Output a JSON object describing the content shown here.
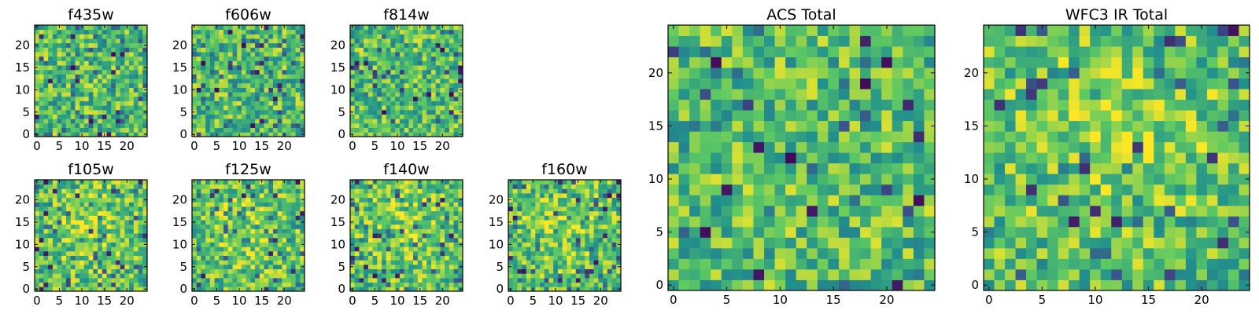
{
  "chart_data": [
    {
      "type": "heatmap",
      "title": "f435w",
      "x_ticks": [
        "0",
        "5",
        "10",
        "15",
        "20"
      ],
      "y_ticks": [
        "0",
        "5",
        "10",
        "15",
        "20"
      ],
      "grid_size": 25,
      "xlim": [
        -0.5,
        24.5
      ],
      "ylim": [
        -0.5,
        24.5
      ],
      "colormap": "viridis",
      "values_note": "per-pixel values not legible"
    },
    {
      "type": "heatmap",
      "title": "f606w",
      "x_ticks": [
        "0",
        "5",
        "10",
        "15",
        "20"
      ],
      "y_ticks": [
        "0",
        "5",
        "10",
        "15",
        "20"
      ],
      "grid_size": 25,
      "xlim": [
        -0.5,
        24.5
      ],
      "ylim": [
        -0.5,
        24.5
      ],
      "colormap": "viridis",
      "values_note": "per-pixel values not legible"
    },
    {
      "type": "heatmap",
      "title": "f814w",
      "x_ticks": [
        "0",
        "5",
        "10",
        "15",
        "20"
      ],
      "y_ticks": [
        "0",
        "5",
        "10",
        "15",
        "20"
      ],
      "grid_size": 25,
      "xlim": [
        -0.5,
        24.5
      ],
      "ylim": [
        -0.5,
        24.5
      ],
      "colormap": "viridis",
      "values_note": "per-pixel values not legible"
    },
    {
      "type": "heatmap",
      "title": "f105w",
      "x_ticks": [
        "0",
        "5",
        "10",
        "15",
        "20"
      ],
      "y_ticks": [
        "0",
        "5",
        "10",
        "15",
        "20"
      ],
      "grid_size": 25,
      "xlim": [
        -0.5,
        24.5
      ],
      "ylim": [
        -0.5,
        24.5
      ],
      "colormap": "viridis",
      "values_note": "per-pixel values not legible"
    },
    {
      "type": "heatmap",
      "title": "f125w",
      "x_ticks": [
        "0",
        "5",
        "10",
        "15",
        "20"
      ],
      "y_ticks": [
        "0",
        "5",
        "10",
        "15",
        "20"
      ],
      "grid_size": 25,
      "xlim": [
        -0.5,
        24.5
      ],
      "ylim": [
        -0.5,
        24.5
      ],
      "colormap": "viridis",
      "values_note": "per-pixel values not legible"
    },
    {
      "type": "heatmap",
      "title": "f140w",
      "x_ticks": [
        "0",
        "5",
        "10",
        "15",
        "20"
      ],
      "y_ticks": [
        "0",
        "5",
        "10",
        "15",
        "20"
      ],
      "grid_size": 25,
      "xlim": [
        -0.5,
        24.5
      ],
      "ylim": [
        -0.5,
        24.5
      ],
      "colormap": "viridis",
      "values_note": "per-pixel values not legible"
    },
    {
      "type": "heatmap",
      "title": "f160w",
      "x_ticks": [
        "0",
        "5",
        "10",
        "15",
        "20"
      ],
      "y_ticks": [
        "0",
        "5",
        "10",
        "15",
        "20"
      ],
      "grid_size": 25,
      "xlim": [
        -0.5,
        24.5
      ],
      "ylim": [
        -0.5,
        24.5
      ],
      "colormap": "viridis",
      "values_note": "per-pixel values not legible"
    },
    {
      "type": "heatmap",
      "title": "ACS Total",
      "x_ticks": [
        "0",
        "5",
        "10",
        "15",
        "20"
      ],
      "y_ticks": [
        "0",
        "5",
        "10",
        "15",
        "20"
      ],
      "grid_size": 25,
      "xlim": [
        -0.5,
        24.5
      ],
      "ylim": [
        -0.5,
        24.5
      ],
      "colormap": "viridis",
      "values_note": "per-pixel values not legible"
    },
    {
      "type": "heatmap",
      "title": "WFC3 IR Total",
      "x_ticks": [
        "0",
        "5",
        "10",
        "15",
        "20"
      ],
      "y_ticks": [
        "0",
        "5",
        "10",
        "15",
        "20"
      ],
      "grid_size": 25,
      "xlim": [
        -0.5,
        24.5
      ],
      "ylim": [
        -0.5,
        24.5
      ],
      "colormap": "viridis",
      "values_note": "per-pixel values not legible"
    }
  ],
  "colors": {
    "viridis_stops": [
      "#440154",
      "#3b528b",
      "#21918c",
      "#5ec962",
      "#fde725"
    ],
    "axes_frame": "#000000",
    "background": "#ffffff"
  }
}
